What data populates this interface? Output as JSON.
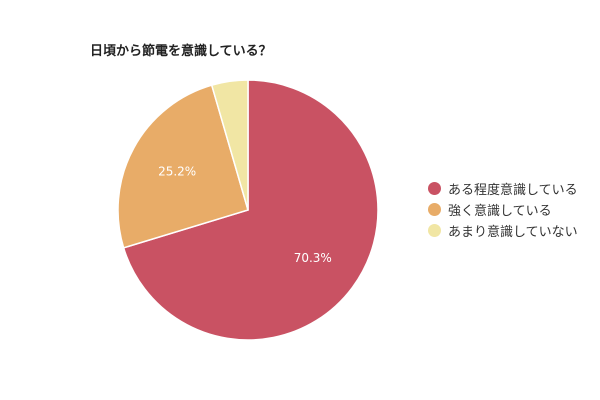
{
  "chart_data": {
    "type": "pie",
    "title": "日頃から節電を意識している？",
    "categories": [
      "ある程度意識している",
      "強く意識している",
      "あまり意識していない"
    ],
    "values": [
      70.3,
      25.2,
      4.5
    ],
    "data_labels": [
      "70.3%",
      "25.2%",
      ""
    ],
    "colors": [
      "#c95263",
      "#e8ac68",
      "#f1e6a4"
    ],
    "legend": "right",
    "start_angle": "top",
    "direction": "clockwise"
  }
}
